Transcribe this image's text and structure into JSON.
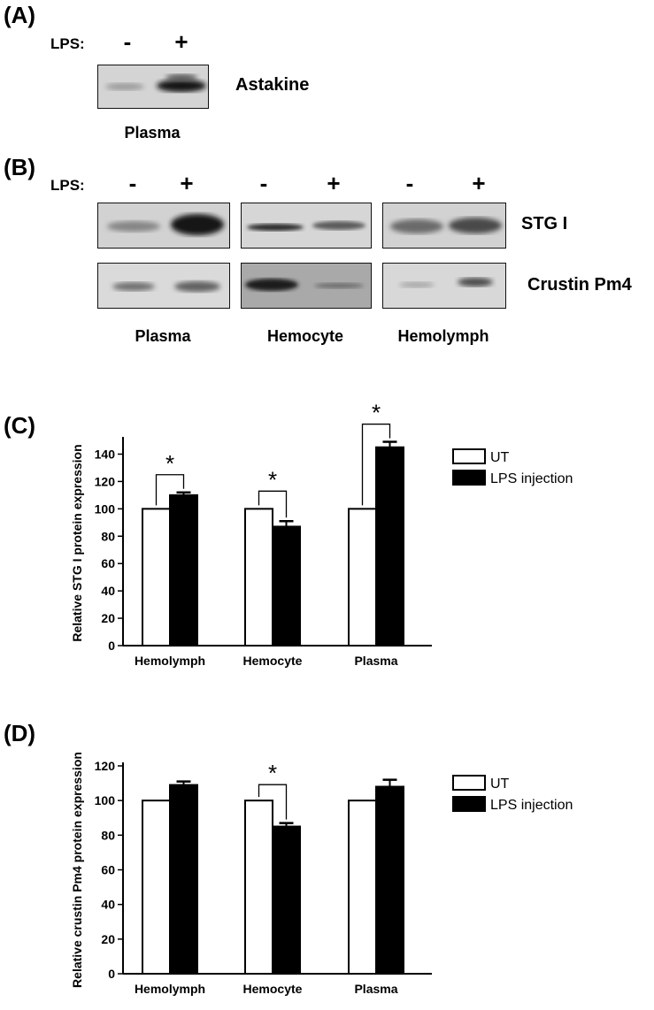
{
  "panel_a": {
    "letter": "(A)",
    "lps_label": "LPS:",
    "signs": [
      "-",
      "+"
    ],
    "protein_label": "Astakine",
    "sample_caption": "Plasma"
  },
  "panel_b": {
    "letter": "(B)",
    "lps_label": "LPS:",
    "signs": [
      "-",
      "+",
      "-",
      "+",
      "-",
      "+"
    ],
    "row_labels": [
      "STG I",
      "Crustin Pm4"
    ],
    "sample_captions": [
      "Plasma",
      "Hemocyte",
      "Hemolymph"
    ]
  },
  "panel_c": {
    "letter": "(C)"
  },
  "panel_d": {
    "letter": "(D)"
  },
  "chart_data": [
    {
      "type": "bar",
      "ylabel": "Relative STG I protein expression",
      "categories": [
        "Hemolymph",
        "Hemocyte",
        "Plasma"
      ],
      "series": [
        {
          "name": "UT",
          "values": [
            100,
            100,
            100
          ],
          "error": [
            0,
            0,
            0
          ],
          "color": "#ffffff"
        },
        {
          "name": "LPS injection",
          "values": [
            110,
            87,
            145
          ],
          "error": [
            2,
            4,
            4
          ],
          "color": "#000000"
        }
      ],
      "ylim": [
        0,
        150
      ],
      "yticks": [
        0,
        20,
        40,
        60,
        80,
        100,
        120,
        140
      ],
      "significance": [
        "*",
        "*",
        "*"
      ],
      "legend_placement": "top-right"
    },
    {
      "type": "bar",
      "ylabel": "Relative crustin Pm4 protein expression",
      "categories": [
        "Hemolymph",
        "Hemocyte",
        "Plasma"
      ],
      "series": [
        {
          "name": "UT",
          "values": [
            100,
            100,
            100
          ],
          "error": [
            0,
            0,
            0
          ],
          "color": "#ffffff"
        },
        {
          "name": "LPS injection",
          "values": [
            109,
            85,
            108
          ],
          "error": [
            2,
            2,
            4
          ],
          "color": "#000000"
        }
      ],
      "ylim": [
        0,
        120
      ],
      "yticks": [
        0,
        20,
        40,
        60,
        80,
        100,
        120
      ],
      "significance": [
        "",
        "*",
        ""
      ],
      "legend_placement": "top-right"
    }
  ]
}
